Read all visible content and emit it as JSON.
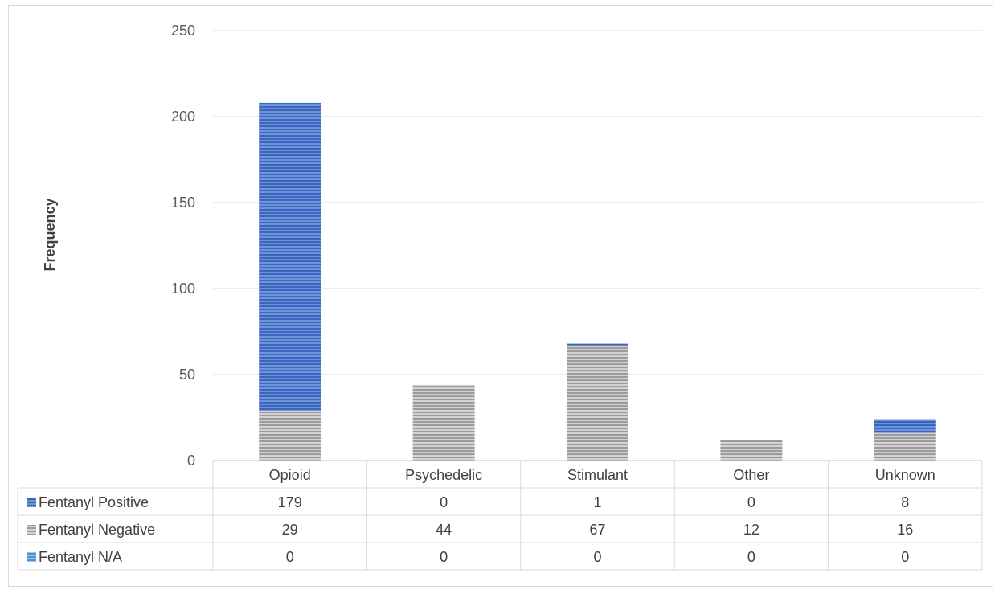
{
  "chart_data": {
    "type": "bar",
    "stacked": true,
    "ylabel": "Frequency",
    "xlabel": "",
    "ylim": [
      0,
      250
    ],
    "yticks": [
      0,
      50,
      100,
      150,
      200,
      250
    ],
    "grid": true,
    "legend_placement": "data-table",
    "categories": [
      "Opioid",
      "Psychedelic",
      "Stimulant",
      "Other",
      "Unknown"
    ],
    "series": [
      {
        "name": "Fentanyl Positive",
        "color": "#4472c4",
        "values": [
          179,
          0,
          1,
          0,
          8
        ]
      },
      {
        "name": "Fentanyl Negative",
        "color": "#a5a5a5",
        "values": [
          29,
          44,
          67,
          12,
          16
        ]
      },
      {
        "name": "Fentanyl N/A",
        "color": "#5b9bd5",
        "values": [
          0,
          0,
          0,
          0,
          0
        ]
      }
    ],
    "stack_order": [
      1,
      0,
      2
    ]
  }
}
